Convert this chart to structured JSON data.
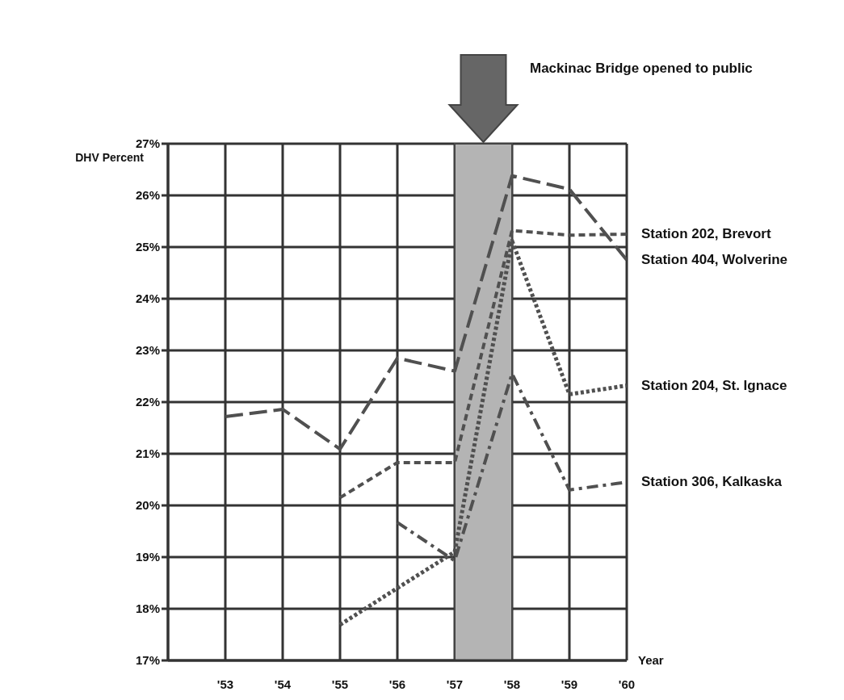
{
  "chart_data": {
    "type": "line",
    "ylabel": "DHV Percent",
    "xlabel": "Year",
    "x": [
      1953,
      1954,
      1955,
      1956,
      1957,
      1958,
      1959,
      1960
    ],
    "series": [
      {
        "name": "Station  202, Brevort",
        "color": "#505050",
        "line_style": "dashed",
        "values": [
          null,
          null,
          20.15,
          20.83,
          20.83,
          25.32,
          25.23,
          25.25
        ]
      },
      {
        "name": "Station  404, Wolverine",
        "color": "#505050",
        "line_style": "dashed",
        "values": [
          21.72,
          21.86,
          21.09,
          22.85,
          22.6,
          26.38,
          26.12,
          24.75
        ]
      },
      {
        "name": "Station  204, St. Ignace",
        "color": "#505050",
        "line_style": "dotted",
        "values": [
          null,
          null,
          17.69,
          18.4,
          19.1,
          25.12,
          22.15,
          22.32
        ]
      },
      {
        "name": "Station  306, Kalkaska",
        "color": "#505050",
        "line_style": "dashed",
        "values": [
          null,
          null,
          null,
          19.67,
          18.93,
          22.55,
          20.3,
          20.45
        ]
      }
    ],
    "xlim": [
      1952,
      1960
    ],
    "xticks": [
      {
        "value": 1952,
        "label": null
      },
      {
        "value": 1953,
        "label": "'53"
      },
      {
        "value": 1954,
        "label": "'54"
      },
      {
        "value": 1955,
        "label": "'55"
      },
      {
        "value": 1956,
        "label": "'56"
      },
      {
        "value": 1957,
        "label": "'57"
      },
      {
        "value": 1958,
        "label": "'58"
      },
      {
        "value": 1959,
        "label": "'59"
      },
      {
        "value": 1960,
        "label": "'60"
      }
    ],
    "ylim": [
      17,
      27
    ],
    "yticks": [
      {
        "value": 17,
        "label": "17%"
      },
      {
        "value": 18,
        "label": "18%"
      },
      {
        "value": 19,
        "label": "19%"
      },
      {
        "value": 20,
        "label": "20%"
      },
      {
        "value": 21,
        "label": "21%"
      },
      {
        "value": 22,
        "label": "22%"
      },
      {
        "value": 23,
        "label": "23%"
      },
      {
        "value": 24,
        "label": "24%"
      },
      {
        "value": 25,
        "label": "25%"
      },
      {
        "value": 26,
        "label": "26%"
      },
      {
        "value": 27,
        "label": "27%"
      }
    ],
    "bands": [
      {
        "axis": "x",
        "from": 1957,
        "to": 1958,
        "color": "#b4b4b4"
      }
    ],
    "annotations": [
      "Mackinac Bridge opened to public"
    ],
    "grid": true,
    "marker": "none"
  }
}
